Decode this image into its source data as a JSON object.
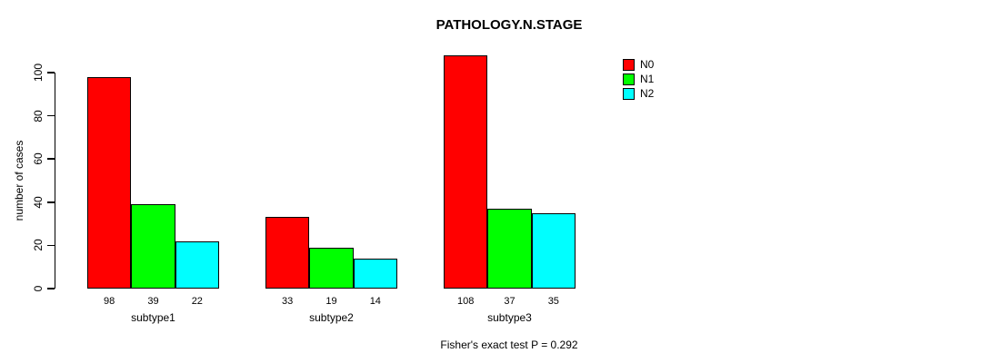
{
  "title": "PATHOLOGY.N.STAGE",
  "annotation": "Fisher's exact test P = 0.292",
  "colors": {
    "n0": "#ff0000",
    "n1": "#00ff00",
    "n2": "#00ffff",
    "axis": "#000000",
    "background": "#ffffff"
  },
  "chart_data": {
    "type": "bar",
    "title": "PATHOLOGY.N.STAGE",
    "xlabel": "",
    "ylabel": "number of cases",
    "categories": [
      "subtype1",
      "subtype2",
      "subtype3"
    ],
    "series": [
      {
        "name": "N0",
        "color": "#ff0000",
        "values": [
          98,
          33,
          108
        ]
      },
      {
        "name": "N1",
        "color": "#00ff00",
        "values": [
          39,
          19,
          37
        ]
      },
      {
        "name": "N2",
        "color": "#00ffff",
        "values": [
          22,
          14,
          35
        ]
      }
    ],
    "bar_value_labels_shown": true,
    "yticks": [
      0,
      20,
      40,
      60,
      80,
      100
    ],
    "ylim": [
      0,
      110
    ],
    "grid": false,
    "legend_position": "top-right",
    "legend_box": false,
    "annotation": "Fisher's exact test P = 0.292"
  }
}
